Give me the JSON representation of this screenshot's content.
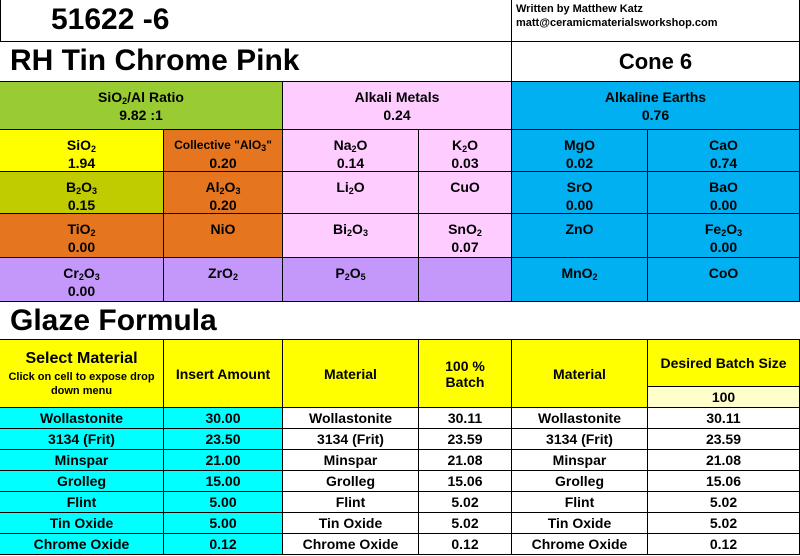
{
  "sheet": {
    "number": "51622 -6",
    "author_line1": "Written by Matthew Katz",
    "author_line2": "matt@ceramicmaterialsworkshop.com",
    "glaze_name": "RH Tin Chrome Pink",
    "cone": "Cone 6"
  },
  "groups": {
    "ratio_label": "Ratio",
    "ratio_value": "9.82 :1",
    "alkali_label": "Alkali Metals",
    "alkali_value": "0.24",
    "earth_label": "Alkaline Earths",
    "earth_value": "0.76"
  },
  "oxides": {
    "sio2": "1.94",
    "al2o3_collective_label": "Collective \"Al",
    "al2o3_collective": "0.20",
    "na2o": "0.14",
    "k2o": "0.03",
    "mgo": "0.02",
    "cao": "0.74",
    "b2o3": "0.15",
    "al2o3": "0.20",
    "li2o_label": "Li",
    "cuo_label": "CuO",
    "sro": "0.00",
    "bao": "0.00",
    "tio2": "0.00",
    "nio_label": "NiO",
    "bi2o3_label": "Bi",
    "sno2": "0.07",
    "zno_label": "ZnO",
    "fe2o3": "0.00",
    "cr2o3": "0.00",
    "zro2_label": "ZrO",
    "p2o5_label": "P",
    "mno2_label": "MnO",
    "coo_label": "CoO",
    "sro_label": "SrO",
    "bao_label": "BaO",
    "mgo_label": "MgO",
    "cao_label": "CaO"
  },
  "formula": {
    "title": "Glaze Formula",
    "col_select": "Select Material",
    "col_select_hint": "Click on cell to expose drop down menu",
    "col_insert": "Insert Amount",
    "col_material": "Material",
    "col_batch": "100 % Batch",
    "col_material2": "Material",
    "col_desired": "Desired Batch Size",
    "desired_value": "100",
    "rows": [
      {
        "select": "Wollastonite",
        "amount": "30.00",
        "material": "Wollastonite",
        "batch": "30.11",
        "material2": "Wollastonite",
        "desired": "30.11"
      },
      {
        "select": "3134 (Frit)",
        "amount": "23.50",
        "material": "3134 (Frit)",
        "batch": "23.59",
        "material2": "3134 (Frit)",
        "desired": "23.59"
      },
      {
        "select": "Minspar",
        "amount": "21.00",
        "material": "Minspar",
        "batch": "21.08",
        "material2": "Minspar",
        "desired": "21.08"
      },
      {
        "select": "Grolleg",
        "amount": "15.00",
        "material": "Grolleg",
        "batch": "15.06",
        "material2": "Grolleg",
        "desired": "15.06"
      },
      {
        "select": "Flint",
        "amount": "5.00",
        "material": "Flint",
        "batch": "5.02",
        "material2": "Flint",
        "desired": "5.02"
      },
      {
        "select": "Tin Oxide",
        "amount": "5.00",
        "material": "Tin Oxide",
        "batch": "5.02",
        "material2": "Tin Oxide",
        "desired": "5.02"
      },
      {
        "select": "Chrome Oxide",
        "amount": "0.12",
        "material": "Chrome Oxide",
        "batch": "0.12",
        "material2": "Chrome Oxide",
        "desired": "0.12"
      }
    ]
  }
}
